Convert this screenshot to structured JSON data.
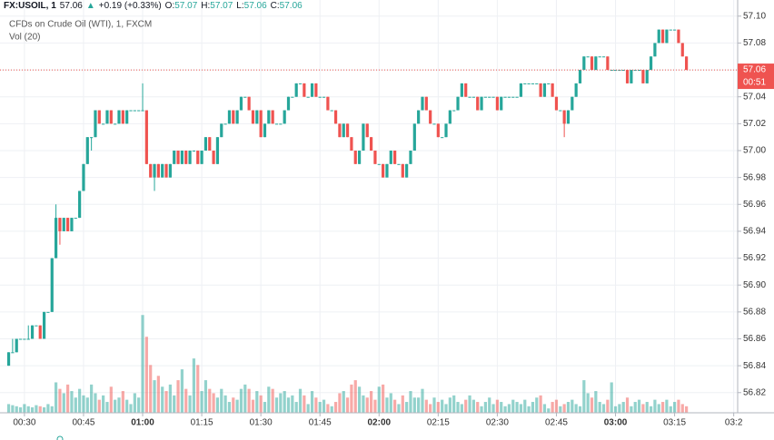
{
  "chart_data": {
    "type": "candlestick",
    "header": {
      "symbol": "FX:USOIL, 1",
      "price": "57.06",
      "change": "+0.19 (+0.33%)",
      "ohlc": [
        {
          "key": "O:",
          "value": "57.07"
        },
        {
          "key": "H:",
          "value": "57.07"
        },
        {
          "key": "L:",
          "value": "57.06"
        },
        {
          "key": "C:",
          "value": "57.06"
        }
      ]
    },
    "title": "CFDs on Crude Oil (WTI), 1, FXCM",
    "indicator": "Vol (20)",
    "last_price_label": "57.06",
    "countdown": "00:51",
    "up_color": "#26a69a",
    "down_color": "#ef5350",
    "grid": true,
    "xlim": [
      -2.2,
      185
    ],
    "xticks": [
      {
        "value": 4,
        "label": "00:30"
      },
      {
        "value": 19,
        "label": "00:45"
      },
      {
        "value": 34,
        "label": "01:00"
      },
      {
        "value": 49,
        "label": "01:15"
      },
      {
        "value": 64,
        "label": "01:30"
      },
      {
        "value": 79,
        "label": "01:45"
      },
      {
        "value": 94,
        "label": "02:00"
      },
      {
        "value": 109,
        "label": "02:15"
      },
      {
        "value": 124,
        "label": "02:30"
      },
      {
        "value": 139,
        "label": "02:45"
      },
      {
        "value": 154,
        "label": "03:00"
      },
      {
        "value": 169,
        "label": "03:15"
      },
      {
        "value": 184,
        "label": "03:2"
      }
    ],
    "ylim": [
      56.805,
      57.112
    ],
    "yticks": [
      56.82,
      56.84,
      56.86,
      56.88,
      {
        "value": 56.9,
        "label": "56.90"
      },
      56.92,
      56.94,
      56.96,
      56.98,
      {
        "value": 57,
        "label": "57.00"
      },
      57.02,
      57.04,
      57.06,
      57.08,
      {
        "value": 57.1,
        "label": "57.10"
      }
    ],
    "volume_lim": [
      0,
      380
    ],
    "open": [
      56.84,
      56.85,
      56.85,
      56.86,
      56.86,
      56.86,
      56.86,
      56.87,
      56.87,
      56.86,
      56.88,
      56.88,
      56.92,
      56.95,
      56.94,
      56.95,
      56.94,
      56.95,
      56.95,
      56.97,
      56.99,
      57.01,
      57.01,
      57.03,
      57.02,
      57.02,
      57.03,
      57.02,
      57.02,
      57.03,
      57.02,
      57.03,
      57.03,
      57.03,
      57.03,
      57.03,
      56.99,
      56.98,
      56.99,
      56.98,
      56.99,
      56.98,
      56.99,
      57.0,
      56.99,
      57.0,
      56.99,
      57.0,
      57.0,
      56.99,
      57.0,
      57.01,
      57.0,
      56.99,
      57.01,
      57.02,
      57.02,
      57.03,
      57.02,
      57.03,
      57.04,
      57.04,
      57.03,
      57.02,
      57.03,
      57.01,
      57.02,
      57.03,
      57.02,
      57.02,
      57.02,
      57.03,
      57.04,
      57.04,
      57.05,
      57.05,
      57.04,
      57.04,
      57.05,
      57.04,
      57.04,
      57.04,
      57.03,
      57.03,
      57.02,
      57.01,
      57.02,
      57.01,
      57.0,
      56.99,
      57.0,
      57.02,
      57.01,
      57.0,
      56.99,
      56.99,
      56.98,
      56.99,
      57.0,
      56.99,
      56.99,
      56.98,
      56.99,
      57.0,
      57.02,
      57.03,
      57.04,
      57.03,
      57.02,
      57.02,
      57.01,
      57.01,
      57.02,
      57.03,
      57.03,
      57.04,
      57.05,
      57.04,
      57.04,
      57.04,
      57.03,
      57.04,
      57.04,
      57.04,
      57.04,
      57.03,
      57.04,
      57.04,
      57.04,
      57.04,
      57.04,
      57.05,
      57.05,
      57.05,
      57.05,
      57.05,
      57.04,
      57.05,
      57.05,
      57.04,
      57.03,
      57.03,
      57.02,
      57.03,
      57.04,
      57.05,
      57.06,
      57.07,
      57.07,
      57.06,
      57.07,
      57.07,
      57.07,
      57.06,
      57.06,
      57.06,
      57.06,
      57.06,
      57.05,
      57.06,
      57.06,
      57.06,
      57.05,
      57.06,
      57.07,
      57.08,
      57.09,
      57.08,
      57.09,
      57.09,
      57.09,
      57.08,
      57.07
    ],
    "high": [
      56.85,
      56.86,
      56.86,
      56.86,
      56.86,
      56.87,
      56.87,
      56.87,
      56.87,
      56.88,
      56.88,
      56.92,
      56.96,
      56.95,
      56.95,
      56.95,
      56.95,
      56.95,
      56.97,
      56.99,
      57.01,
      57.01,
      57.03,
      57.03,
      57.02,
      57.03,
      57.03,
      57.02,
      57.03,
      57.03,
      57.03,
      57.03,
      57.03,
      57.03,
      57.05,
      57.03,
      56.99,
      56.99,
      56.99,
      56.99,
      56.99,
      56.99,
      57.0,
      57.0,
      57.0,
      57.0,
      57.0,
      57.0,
      57.0,
      57.0,
      57.01,
      57.01,
      57.0,
      57.01,
      57.02,
      57.02,
      57.03,
      57.03,
      57.03,
      57.04,
      57.04,
      57.04,
      57.03,
      57.03,
      57.03,
      57.02,
      57.03,
      57.03,
      57.02,
      57.02,
      57.03,
      57.04,
      57.04,
      57.05,
      57.05,
      57.05,
      57.04,
      57.05,
      57.05,
      57.04,
      57.04,
      57.04,
      57.03,
      57.03,
      57.02,
      57.02,
      57.02,
      57.01,
      57.0,
      57.0,
      57.02,
      57.02,
      57.01,
      57.0,
      56.99,
      56.99,
      56.99,
      57.0,
      57.0,
      56.99,
      56.99,
      56.99,
      57.0,
      57.02,
      57.03,
      57.04,
      57.04,
      57.03,
      57.02,
      57.02,
      57.01,
      57.02,
      57.03,
      57.03,
      57.04,
      57.05,
      57.05,
      57.04,
      57.04,
      57.04,
      57.04,
      57.04,
      57.04,
      57.04,
      57.04,
      57.04,
      57.04,
      57.04,
      57.04,
      57.04,
      57.05,
      57.05,
      57.05,
      57.05,
      57.05,
      57.05,
      57.05,
      57.05,
      57.05,
      57.04,
      57.03,
      57.03,
      57.03,
      57.04,
      57.05,
      57.06,
      57.07,
      57.07,
      57.07,
      57.07,
      57.07,
      57.07,
      57.07,
      57.06,
      57.06,
      57.06,
      57.06,
      57.06,
      57.06,
      57.06,
      57.06,
      57.06,
      57.06,
      57.07,
      57.08,
      57.09,
      57.09,
      57.09,
      57.09,
      57.09,
      57.09,
      57.08,
      57.07
    ],
    "low": [
      56.84,
      56.85,
      56.85,
      56.86,
      56.86,
      56.86,
      56.86,
      56.87,
      56.86,
      56.86,
      56.88,
      56.88,
      56.92,
      56.93,
      56.94,
      56.94,
      56.94,
      56.95,
      56.95,
      56.97,
      56.99,
      57.0,
      57.01,
      57.02,
      57.02,
      57.02,
      57.02,
      57.02,
      57.02,
      57.02,
      57.02,
      57.03,
      57.03,
      57.03,
      57.03,
      56.99,
      56.98,
      56.97,
      56.98,
      56.98,
      56.98,
      56.98,
      56.99,
      56.99,
      56.99,
      56.99,
      56.99,
      57.0,
      56.99,
      56.99,
      57.0,
      57.0,
      56.99,
      56.99,
      57.01,
      57.02,
      57.02,
      57.02,
      57.02,
      57.03,
      57.04,
      57.03,
      57.02,
      57.02,
      57.01,
      57.01,
      57.02,
      57.02,
      57.02,
      57.02,
      57.02,
      57.03,
      57.04,
      57.04,
      57.05,
      57.04,
      57.04,
      57.04,
      57.04,
      57.04,
      57.04,
      57.03,
      57.03,
      57.02,
      57.01,
      57.01,
      57.01,
      57.0,
      56.99,
      56.99,
      57.0,
      57.01,
      57.0,
      56.99,
      56.99,
      56.98,
      56.98,
      56.99,
      56.99,
      56.99,
      56.98,
      56.98,
      56.99,
      57.0,
      57.02,
      57.03,
      57.03,
      57.02,
      57.02,
      57.01,
      57.01,
      57.01,
      57.02,
      57.03,
      57.03,
      57.04,
      57.04,
      57.04,
      57.04,
      57.03,
      57.03,
      57.04,
      57.04,
      57.04,
      57.03,
      57.03,
      57.04,
      57.04,
      57.04,
      57.04,
      57.04,
      57.05,
      57.05,
      57.05,
      57.05,
      57.04,
      57.04,
      57.05,
      57.04,
      57.03,
      57.03,
      57.01,
      57.02,
      57.03,
      57.04,
      57.05,
      57.06,
      57.07,
      57.06,
      57.06,
      57.07,
      57.07,
      57.06,
      57.06,
      57.06,
      57.06,
      57.06,
      57.05,
      57.05,
      57.06,
      57.06,
      57.05,
      57.05,
      57.06,
      57.07,
      57.08,
      57.08,
      57.08,
      57.09,
      57.09,
      57.08,
      57.07,
      57.06
    ],
    "close": [
      56.85,
      56.85,
      56.86,
      56.86,
      56.86,
      56.86,
      56.87,
      56.87,
      56.86,
      56.88,
      56.88,
      56.92,
      56.95,
      56.94,
      56.95,
      56.94,
      56.95,
      56.95,
      56.97,
      56.99,
      57.01,
      57.01,
      57.03,
      57.02,
      57.02,
      57.03,
      57.02,
      57.02,
      57.03,
      57.02,
      57.03,
      57.03,
      57.03,
      57.03,
      57.03,
      56.99,
      56.98,
      56.99,
      56.98,
      56.99,
      56.98,
      56.99,
      57.0,
      56.99,
      57.0,
      56.99,
      57.0,
      57.0,
      56.99,
      57.0,
      57.01,
      57.0,
      56.99,
      57.01,
      57.02,
      57.02,
      57.03,
      57.02,
      57.03,
      57.04,
      57.04,
      57.03,
      57.02,
      57.03,
      57.01,
      57.02,
      57.03,
      57.02,
      57.02,
      57.02,
      57.03,
      57.04,
      57.04,
      57.05,
      57.05,
      57.04,
      57.04,
      57.05,
      57.04,
      57.04,
      57.04,
      57.03,
      57.03,
      57.02,
      57.01,
      57.02,
      57.01,
      57.0,
      56.99,
      57.0,
      57.02,
      57.01,
      57.0,
      56.99,
      56.99,
      56.98,
      56.99,
      57.0,
      56.99,
      56.99,
      56.98,
      56.99,
      57.0,
      57.02,
      57.03,
      57.04,
      57.03,
      57.02,
      57.02,
      57.01,
      57.01,
      57.02,
      57.03,
      57.03,
      57.04,
      57.05,
      57.04,
      57.04,
      57.04,
      57.03,
      57.04,
      57.04,
      57.04,
      57.04,
      57.03,
      57.04,
      57.04,
      57.04,
      57.04,
      57.04,
      57.05,
      57.05,
      57.05,
      57.05,
      57.05,
      57.04,
      57.05,
      57.05,
      57.04,
      57.03,
      57.03,
      57.02,
      57.03,
      57.04,
      57.05,
      57.06,
      57.07,
      57.07,
      57.06,
      57.07,
      57.07,
      57.07,
      57.06,
      57.06,
      57.06,
      57.06,
      57.06,
      57.05,
      57.06,
      57.06,
      57.06,
      57.05,
      57.06,
      57.07,
      57.08,
      57.09,
      57.08,
      57.09,
      57.09,
      57.09,
      57.08,
      57.07,
      57.06
    ],
    "volume": [
      8,
      7,
      6,
      5,
      8,
      6,
      5,
      7,
      6,
      5,
      8,
      6,
      28,
      22,
      18,
      26,
      20,
      14,
      22,
      16,
      14,
      26,
      18,
      12,
      16,
      10,
      24,
      12,
      14,
      20,
      12,
      8,
      18,
      14,
      90,
      70,
      44,
      30,
      34,
      24,
      20,
      26,
      16,
      30,
      40,
      22,
      16,
      50,
      44,
      20,
      30,
      22,
      18,
      14,
      22,
      16,
      10,
      14,
      12,
      22,
      26,
      22,
      12,
      20,
      16,
      10,
      24,
      22,
      14,
      18,
      20,
      14,
      16,
      10,
      22,
      16,
      8,
      20,
      14,
      10,
      12,
      8,
      6,
      10,
      18,
      20,
      14,
      26,
      30,
      24,
      16,
      14,
      20,
      12,
      24,
      26,
      14,
      18,
      12,
      8,
      16,
      10,
      20,
      14,
      14,
      22,
      12,
      8,
      14,
      10,
      12,
      8,
      14,
      16,
      10,
      8,
      12,
      16,
      12,
      10,
      6,
      10,
      14,
      8,
      12,
      10,
      6,
      8,
      12,
      10,
      8,
      12,
      6,
      10,
      14,
      16,
      8,
      4,
      10,
      12,
      6,
      8,
      10,
      12,
      8,
      6,
      30,
      18,
      14,
      20,
      10,
      8,
      12,
      28,
      6,
      8,
      10,
      14,
      6,
      10,
      12,
      8,
      10,
      6,
      12,
      8,
      10,
      12,
      6,
      10,
      12,
      8,
      6
    ]
  }
}
